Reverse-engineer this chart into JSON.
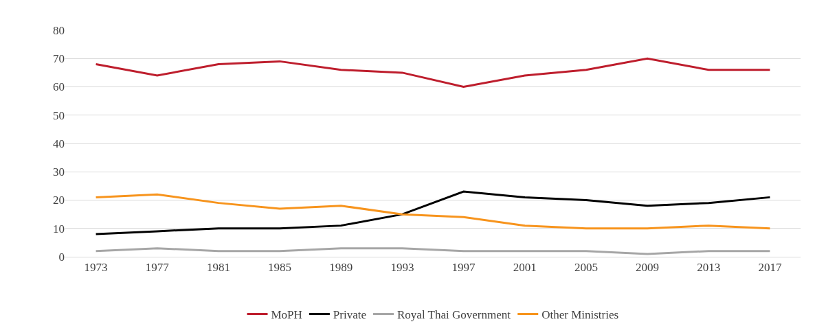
{
  "chart_data": {
    "type": "line",
    "categories": [
      "1973",
      "1977",
      "1981",
      "1985",
      "1989",
      "1993",
      "1997",
      "2001",
      "2005",
      "2009",
      "2013",
      "2017"
    ],
    "series": [
      {
        "name": "MoPH",
        "color": "#be1e2d",
        "values": [
          68,
          64,
          68,
          69,
          66,
          65,
          60,
          64,
          66,
          70,
          66,
          66
        ]
      },
      {
        "name": "Private",
        "color": "#000000",
        "values": [
          8,
          9,
          10,
          10,
          11,
          15,
          23,
          21,
          20,
          18,
          19,
          21
        ]
      },
      {
        "name": "Royal Thai Government",
        "color": "#a6a6a6",
        "values": [
          2,
          3,
          2,
          2,
          3,
          3,
          2,
          2,
          2,
          1,
          2,
          2
        ]
      },
      {
        "name": "Other Ministries",
        "color": "#f7941d",
        "values": [
          21,
          22,
          19,
          17,
          18,
          15,
          14,
          11,
          10,
          10,
          11,
          10
        ]
      }
    ],
    "ylim": [
      0,
      80
    ],
    "yticks": [
      0,
      10,
      20,
      30,
      40,
      50,
      60,
      70,
      80
    ],
    "grid": "y",
    "legend": "bottom",
    "marker": "none",
    "line_style": "solid"
  }
}
